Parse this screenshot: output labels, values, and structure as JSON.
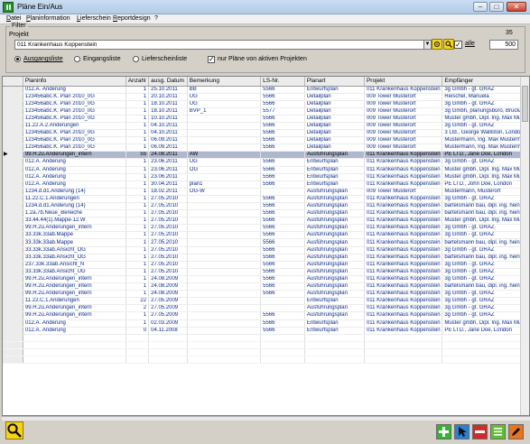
{
  "window": {
    "title": "Pläne Ein/Aus"
  },
  "menu": [
    "Datei",
    "Planinformation",
    "Lieferschein",
    "Reportdesign",
    "?"
  ],
  "filter": {
    "label": "Filter",
    "projekt_label": "Projekt",
    "count": "35",
    "project_value": "011 Krankenhaus Koppenstein",
    "alle_label": "alle",
    "alle_checked": "✓",
    "limit": "500",
    "radios": [
      "Ausgangsliste",
      "Eingangsliste",
      "Lieferscheinliste"
    ],
    "aktive_label": "nur Pläne von aktiven Projekten",
    "aktive_checked": "✓"
  },
  "table": {
    "columns": [
      "Planinfo",
      "Anzahl",
      "ausg. Datum",
      "Bemerkung",
      "LS-Nr.",
      "Planart",
      "Projekt",
      "Empfänger"
    ],
    "rows": [
      [
        "012.A. Änderung",
        "1",
        "25.10.2011",
        "BB",
        "5566",
        "Entwurfsplan",
        "011 Krankenhaus Koppenstein",
        "3g Gmbh - gt. GRAZ"
      ],
      [
        "123456abc.K. Plan 2010_0G",
        "1",
        "20.10.2011",
        "UG",
        "5566",
        "Detailplan",
        "009 Tower Musterort",
        "Reischel, Manuela"
      ],
      [
        "123456abc.K. Plan 2010_0G",
        "1",
        "18.10.2011",
        "UG",
        "5566",
        "Detailplan",
        "009 Tower Musterort",
        "3g Gmbh - gt. GRAZ"
      ],
      [
        "123456abc.K. Plan 2010_0G",
        "1",
        "18.10.2011",
        "BVP_1",
        "5577",
        "Detailplan",
        "009 Tower Musterort",
        "3g Gmbh, planungsbüro, Bruck/Mur"
      ],
      [
        "123456abc.K. Plan 2010_0G",
        "1",
        "10.10.2011",
        "",
        "5566",
        "Detailplan",
        "009 Tower Musterort",
        "Muster gmbh, Dipl. Ing. Max Mustermann"
      ],
      [
        "11.22.A.2.Änderungen",
        "1",
        "04.10.2011",
        "",
        "5566",
        "Detailplan",
        "009 Tower Musterort",
        "3g Gmbh - gt. GRAZ"
      ],
      [
        "123456abc.K. Plan 2010_0G",
        "1",
        "04.10.2011",
        "",
        "5566",
        "Detailplan",
        "009 Tower Musterort",
        "3 Ltd., George Walliston, London"
      ],
      [
        "123456abc.K. Plan 2010_0G",
        "1",
        "06.09.2011",
        "",
        "5566",
        "Detailplan",
        "009 Tower Musterort",
        "Mustermann, Ing. Max Mustermann"
      ],
      [
        "123456abc.K. Plan 2010_0G",
        "1",
        "06.09.2011",
        "",
        "5566",
        "Detailplan",
        "009 Tower Musterort",
        "Mustermann, Ing. Max Mustermann"
      ],
      [
        "99.H.2u.Änderungen_intern",
        "55",
        "24.08.2011",
        "AW",
        "",
        "Ausführungsplan",
        "011 Krankenhaus Koppenstein",
        "PE LTD., Jane Doe, London"
      ],
      [
        "012.A. Änderung",
        "1",
        "23.06.2011",
        "UG",
        "5566",
        "Entwurfsplan",
        "011 Krankenhaus Koppenstein",
        "3g Gmbh - gt. GRAZ"
      ],
      [
        "012.A. Änderung",
        "1",
        "23.06.2011",
        "OG",
        "5566",
        "Entwurfsplan",
        "011 Krankenhaus Koppenstein",
        "Muster gmbh, Dipl. Ing. Max Mustermann"
      ],
      [
        "012.A. Änderung",
        "1",
        "23.06.2011",
        "",
        "5566",
        "Entwurfsplan",
        "011 Krankenhaus Koppenstein",
        "Muster gmbh, Dipl. Ing. Max Mustermann"
      ],
      [
        "012.A. Änderung",
        "1",
        "30.04.2011",
        "plan1",
        "5566",
        "Entwurfsplan",
        "011 Krankenhaus Koppenstein",
        "PE LTD., John Doe, London"
      ],
      [
        "1234.d.d1.Änderung (14)",
        "1",
        "18.02.2011",
        "OG-W",
        "",
        "Ausführungsplan",
        "009 Tower Musterort",
        "Mustermann, Musterort"
      ],
      [
        "11.22.C.1.Änderungen",
        "1",
        "27.05.2010",
        "",
        "5566",
        "Ausführungsplan",
        "011 Krankenhaus Koppenstein",
        "3g Gmbh - gt. GRAZ"
      ],
      [
        "1234.d.d1.Änderung (14)",
        "1",
        "27.05.2010",
        "",
        "5566",
        "Ausführungsplan",
        "011 Krankenhaus Koppenstein",
        "bartelsmann bau, dipl. ing. heinrich bartelsmann"
      ],
      [
        "1.2a.7b.Neue_Bereiche",
        "1",
        "27.05.2010",
        "",
        "5566",
        "Ausführungsplan",
        "011 Krankenhaus Koppenstein",
        "bartelsmann bau, dipl. ing. heinrich bartelsmann"
      ],
      [
        "33.44.44(1).Mappe-12.W",
        "1",
        "27.05.2010",
        "",
        "5566",
        "Ausführungsplan",
        "011 Krankenhaus Koppenstein",
        "Muster gmbh, Dipl. Ing. Max Mustermann"
      ],
      [
        "99.H.2u.Änderungen_intern",
        "1",
        "27.05.2010",
        "",
        "5566",
        "Ausführungsplan",
        "011 Krankenhaus Koppenstein",
        "3g Gmbh - gt. GRAZ"
      ],
      [
        "33.33k.33ab.Mappe",
        "1",
        "27.05.2010",
        "",
        "5566",
        "Ausführungsplan",
        "011 Krankenhaus Koppenstein",
        "3g Gmbh - gt. GRAZ"
      ],
      [
        "33.33k.33ab.Mappe",
        "1",
        "27.05.2010",
        "",
        "5566",
        "Ausführungsplan",
        "011 Krankenhaus Koppenstein",
        "bartelsmann bau, dipl. ing. heinrich bartelsmann"
      ],
      [
        "33.33k.33ab.Ansicht_OG",
        "1",
        "27.05.2010",
        "",
        "5566",
        "Ausführungsplan",
        "011 Krankenhaus Koppenstein",
        "3g Gmbh - gt. GRAZ"
      ],
      [
        "33.33k.33ab.Ansicht_OG",
        "1",
        "27.05.2010",
        "",
        "5566",
        "Ausführungsplan",
        "011 Krankenhaus Koppenstein",
        "bartelsmann bau, dipl. ing. heinrich bartelsmann"
      ],
      [
        "237.33k.33ab.Ansicht_N",
        "1",
        "27.05.2010",
        "",
        "5566",
        "Ausführungsplan",
        "011 Krankenhaus Koppenstein",
        "3g Gmbh - gt. GRAZ"
      ],
      [
        "33.33k.33ab.Ansicht_UG",
        "1",
        "27.05.2010",
        "",
        "5566",
        "Ausführungsplan",
        "011 Krankenhaus Koppenstein",
        "3g Gmbh - gt. GRAZ"
      ],
      [
        "99.H.2u.Änderungen_intern",
        "1",
        "24.08.2009",
        "",
        "5566",
        "Ausführungsplan",
        "011 Krankenhaus Koppenstein",
        "3g Gmbh - gt. GRAZ"
      ],
      [
        "99.H.2u.Änderungen_intern",
        "1",
        "24.08.2009",
        "",
        "5566",
        "Ausführungsplan",
        "011 Krankenhaus Koppenstein",
        "bartelsmann bau, dipl. ing. heinrich bartelsmann"
      ],
      [
        "99.H.2u.Änderungen_intern",
        "1",
        "24.08.2009",
        "",
        "5566",
        "Ausführungsplan",
        "011 Krankenhaus Koppenstein",
        "3g Gmbh - gt. GRAZ"
      ],
      [
        "11.22.C.1.Änderungen",
        "22",
        "27.05.2009",
        "",
        "",
        "Entwurfsplan",
        "011 Krankenhaus Koppenstein",
        "3g Gmbh - gt. GRAZ"
      ],
      [
        "99.H.2u.Änderungen_intern",
        "2",
        "27.05.2009",
        "",
        "",
        "Ausführungsplan",
        "011 Krankenhaus Koppenstein",
        "3g Gmbh - gt. GRAZ"
      ],
      [
        "99.H.2u.Änderungen_intern",
        "1",
        "27.05.2009",
        "",
        "5566",
        "Ausführungsplan",
        "011 Krankenhaus Koppenstein",
        "3g Gmbh - gt. GRAZ"
      ],
      [
        "012.A. Änderung",
        "1",
        "02.03.2009",
        "",
        "5566",
        "Entwurfsplan",
        "011 Krankenhaus Koppenstein",
        "Muster gmbh, Dipl. Ing. Max Mustermann"
      ],
      [
        "012.A. Änderung",
        "0",
        "04.11.2008",
        "",
        "5566",
        "Entwurfsplan",
        "011 Krankenhaus Koppenstein",
        "PE LTD., Jane Doe, London"
      ]
    ],
    "selected_row": 9
  },
  "colors": {
    "selected_row": "#aeb7cf",
    "cell_text": "#0a2a8a",
    "add": "#2fb52f",
    "edit": "#2a7fd6",
    "delete": "#d12a2a",
    "list": "#5cc02f",
    "tools": "#e8741c"
  },
  "icons": {
    "search": "magnifier-icon",
    "add": "plus-icon",
    "edit": "arrow-cursor-icon",
    "delete": "minus-icon",
    "list": "list-icon",
    "tools": "pencil-icon"
  }
}
